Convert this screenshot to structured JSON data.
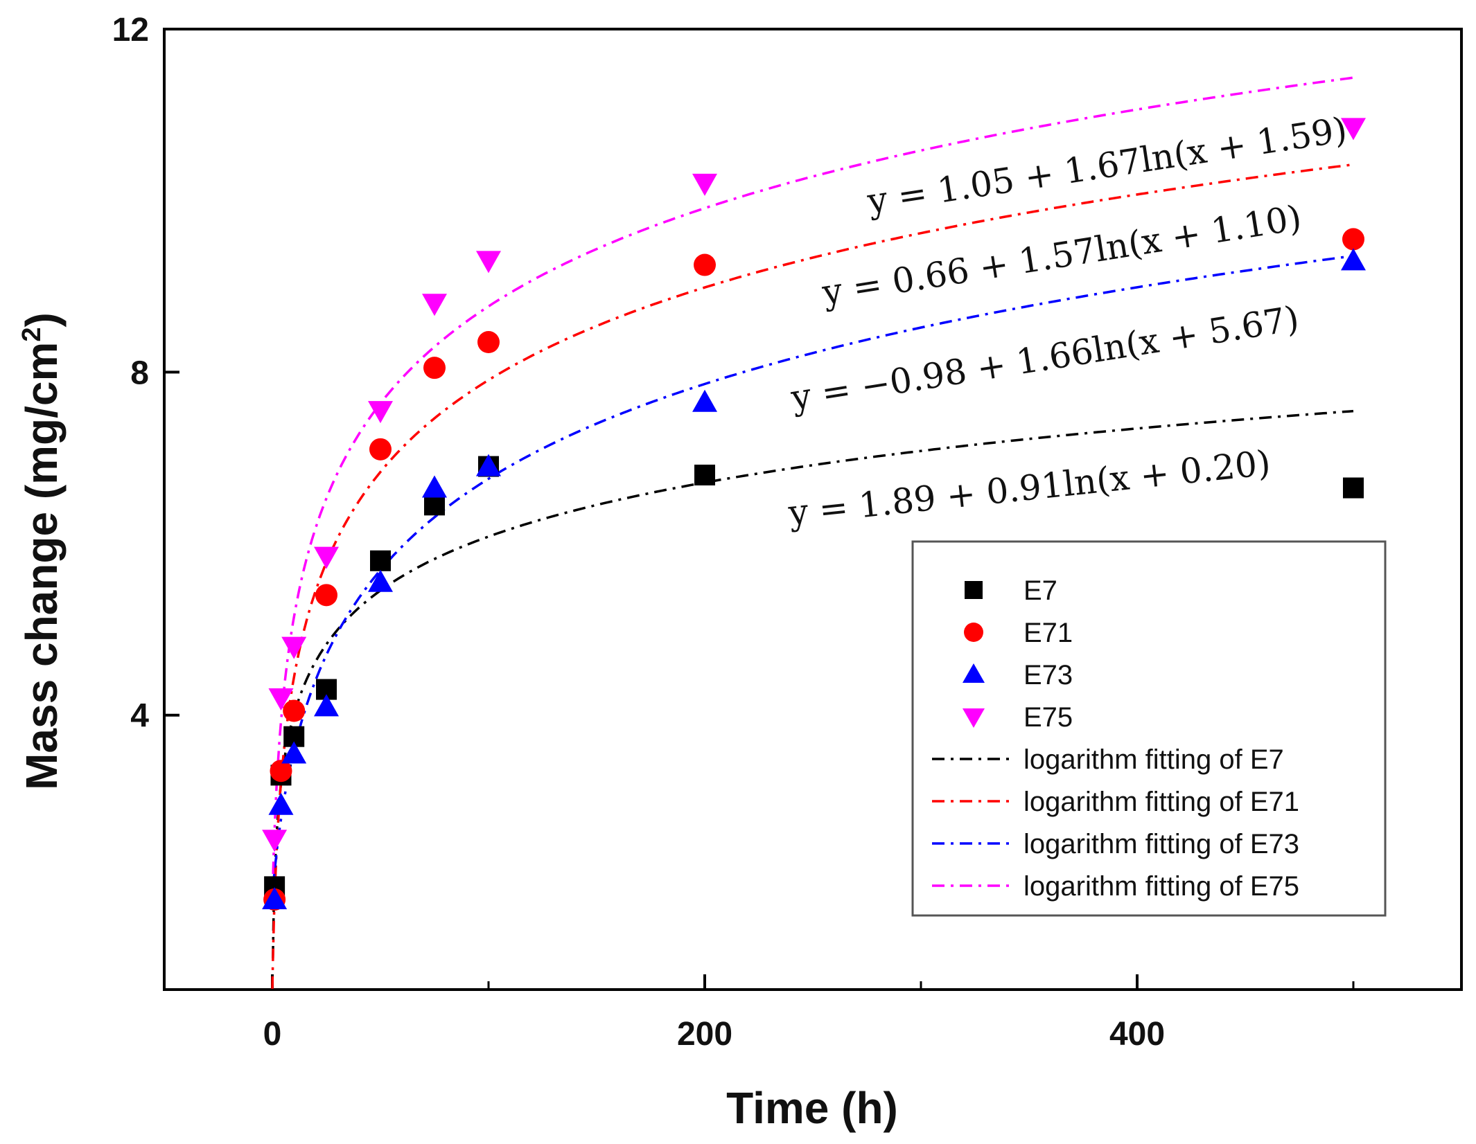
{
  "chart_data": {
    "type": "scatter",
    "title": "",
    "xlabel": "Time (h)",
    "ylabel_main": "Mass change (mg/cm",
    "ylabel_sup": "2",
    "ylabel_close": ")",
    "xlim": [
      -50,
      550
    ],
    "ylim": [
      0.8,
      12
    ],
    "xticks": [
      0,
      200,
      400
    ],
    "xminor": [
      100,
      300,
      500
    ],
    "yticks": [
      4,
      8,
      12
    ],
    "series": [
      {
        "name": "E7",
        "marker": "square",
        "color": "#000000",
        "x": [
          1,
          4,
          10,
          25,
          50,
          75,
          100,
          200,
          500
        ],
        "y": [
          2.0,
          3.3,
          3.75,
          4.3,
          5.8,
          6.45,
          6.9,
          6.8,
          6.65
        ]
      },
      {
        "name": "E71",
        "marker": "circle",
        "color": "#ff0000",
        "x": [
          1,
          4,
          10,
          25,
          50,
          75,
          100,
          200,
          500
        ],
        "y": [
          1.85,
          3.35,
          4.05,
          5.4,
          7.1,
          8.05,
          8.35,
          9.25,
          9.55
        ]
      },
      {
        "name": "E73",
        "marker": "triangle-up",
        "color": "#0000ff",
        "x": [
          1,
          4,
          10,
          25,
          50,
          75,
          100,
          200,
          500
        ],
        "y": [
          1.85,
          2.95,
          3.55,
          4.1,
          5.55,
          6.65,
          6.9,
          7.65,
          9.3
        ]
      },
      {
        "name": "E75",
        "marker": "triangle-down",
        "color": "#ff00ff",
        "x": [
          1,
          4,
          10,
          25,
          50,
          75,
          100,
          200,
          500
        ],
        "y": [
          2.55,
          4.2,
          4.8,
          5.85,
          7.55,
          8.8,
          9.3,
          10.2,
          10.85
        ]
      }
    ],
    "fits": [
      {
        "name": "logarithm fitting of E7",
        "color": "#000000",
        "a": 1.89,
        "b": 0.91,
        "c": 0.2,
        "equation": "y = 1.89 + 0.91ln(x + 0.20)"
      },
      {
        "name": "logarithm fitting of E71",
        "color": "#ff0000",
        "a": 0.66,
        "b": 1.57,
        "c": 1.1,
        "equation": "y = 0.66 + 1.57ln(x + 1.10)"
      },
      {
        "name": "logarithm fitting of E73",
        "color": "#0000ff",
        "a": -0.98,
        "b": 1.66,
        "c": 5.67,
        "equation": "y = −0.98 + 1.66ln(x + 5.67)"
      },
      {
        "name": "logarithm fitting of E75",
        "color": "#ff00ff",
        "a": 1.05,
        "b": 1.67,
        "c": 1.59,
        "equation": "y = 1.05 + 1.67ln(x + 1.59)"
      }
    ],
    "legend_position": "lower-right"
  }
}
